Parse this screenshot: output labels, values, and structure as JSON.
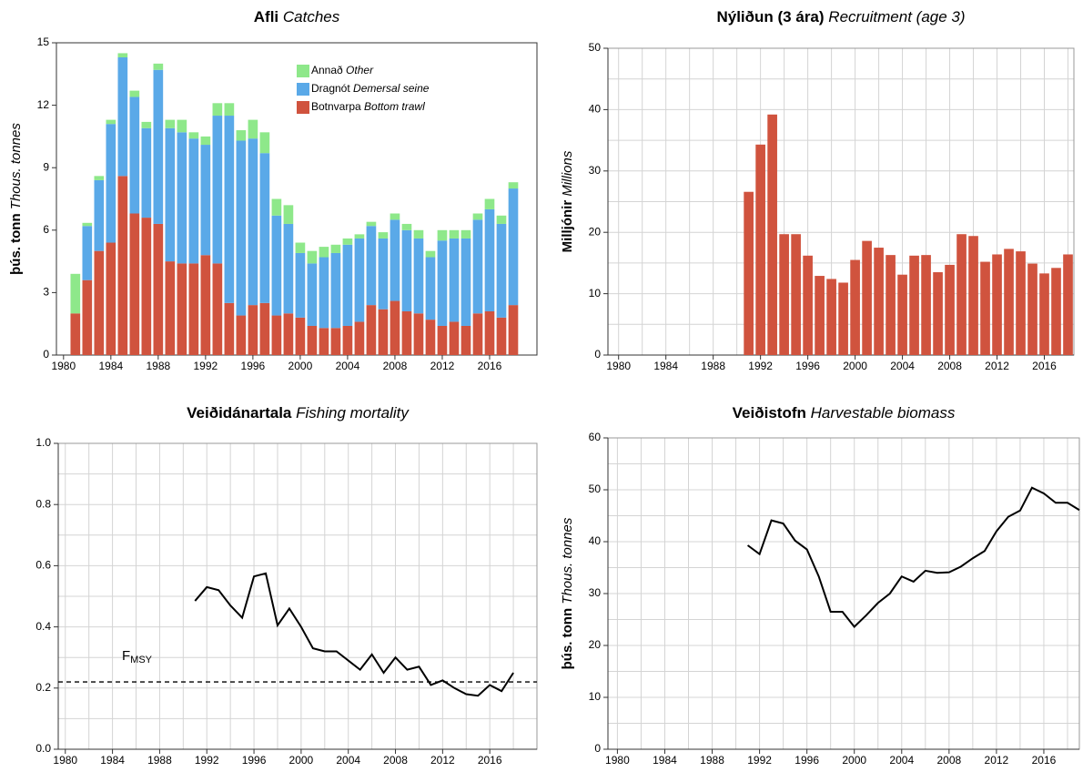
{
  "chart_data": [
    {
      "type": "bar",
      "stacked": true,
      "title": "Afli",
      "title_en": "Catches",
      "ylabel": "þús. tonn",
      "ylabel_en": "Thous. tonnes",
      "x": [
        1981,
        1982,
        1983,
        1984,
        1985,
        1986,
        1987,
        1988,
        1989,
        1990,
        1991,
        1992,
        1993,
        1994,
        1995,
        1996,
        1997,
        1998,
        1999,
        2000,
        2001,
        2002,
        2003,
        2004,
        2005,
        2006,
        2007,
        2008,
        2009,
        2010,
        2011,
        2012,
        2013,
        2014,
        2015,
        2016,
        2017,
        2018
      ],
      "series": [
        {
          "name": "Botnvarpa",
          "name_en": "Bottom trawl",
          "color": "#d0533e",
          "values": [
            2.0,
            3.6,
            5.0,
            5.4,
            8.6,
            6.8,
            6.6,
            6.3,
            4.5,
            4.4,
            4.4,
            4.8,
            4.4,
            2.5,
            1.9,
            2.4,
            2.5,
            1.9,
            2.0,
            1.8,
            1.4,
            1.3,
            1.3,
            1.4,
            1.6,
            2.4,
            2.2,
            2.6,
            2.1,
            2.0,
            1.7,
            1.4,
            1.6,
            1.4,
            2.0,
            2.1,
            1.8,
            2.4
          ]
        },
        {
          "name": "Dragnót",
          "name_en": "Demersal seine",
          "color": "#5aa9e8",
          "values": [
            0,
            2.6,
            3.4,
            5.7,
            5.7,
            5.6,
            4.3,
            7.4,
            6.4,
            6.3,
            6.0,
            5.3,
            7.1,
            9.0,
            8.4,
            8.0,
            7.2,
            4.8,
            4.3,
            3.1,
            3.0,
            3.4,
            3.6,
            3.9,
            4.0,
            3.8,
            3.4,
            3.9,
            3.9,
            3.6,
            3.0,
            4.1,
            4.0,
            4.2,
            4.5,
            4.9,
            4.5,
            5.6
          ]
        },
        {
          "name": "Annað",
          "name_en": "Other",
          "color": "#8ee88a",
          "values": [
            1.9,
            0.15,
            0.2,
            0.2,
            0.2,
            0.3,
            0.3,
            0.3,
            0.4,
            0.6,
            0.3,
            0.4,
            0.6,
            0.6,
            0.5,
            0.9,
            1.0,
            0.8,
            0.9,
            0.5,
            0.6,
            0.5,
            0.4,
            0.3,
            0.2,
            0.2,
            0.3,
            0.3,
            0.3,
            0.4,
            0.3,
            0.5,
            0.4,
            0.4,
            0.3,
            0.5,
            0.4,
            0.3
          ]
        }
      ],
      "xlim": [
        1979.4,
        2020
      ],
      "xticks": [
        1980,
        1984,
        1988,
        1992,
        1996,
        2000,
        2004,
        2008,
        2012,
        2016
      ],
      "ylim": [
        0,
        15
      ],
      "yticks": [
        0,
        3,
        6,
        9,
        12,
        15
      ],
      "grid": false,
      "legend": "top-center"
    },
    {
      "type": "bar",
      "title": "Nýliðun (3 ára)",
      "title_en": "Recruitment (age 3)",
      "ylabel": "Milljónir",
      "ylabel_en": "Millions",
      "x": [
        1991,
        1992,
        1993,
        1994,
        1995,
        1996,
        1997,
        1998,
        1999,
        2000,
        2001,
        2002,
        2003,
        2004,
        2005,
        2006,
        2007,
        2008,
        2009,
        2010,
        2011,
        2012,
        2013,
        2014,
        2015,
        2016,
        2017,
        2018
      ],
      "values": [
        26.6,
        34.3,
        39.2,
        19.7,
        19.7,
        16.2,
        12.9,
        12.4,
        11.8,
        15.5,
        18.6,
        17.5,
        16.3,
        13.1,
        16.2,
        16.3,
        13.5,
        14.7,
        19.7,
        19.4,
        15.2,
        16.4,
        17.3,
        16.9,
        14.9,
        13.3,
        14.2,
        16.4
      ],
      "color": "#d0533e",
      "xlim": [
        1979.1,
        2018.5
      ],
      "xticks": [
        1980,
        1984,
        1988,
        1992,
        1996,
        2000,
        2004,
        2008,
        2012,
        2016
      ],
      "ylim": [
        0,
        50
      ],
      "yticks": [
        0,
        10,
        20,
        30,
        40,
        50
      ],
      "grid": true
    },
    {
      "type": "line",
      "title": "Veiðidánartala",
      "title_en": "Fishing mortality",
      "x": [
        1991,
        1992,
        1993,
        1994,
        1995,
        1996,
        1997,
        1998,
        1999,
        2000,
        2001,
        2002,
        2003,
        2004,
        2005,
        2006,
        2007,
        2008,
        2009,
        2010,
        2011,
        2012,
        2013,
        2014,
        2015,
        2016,
        2017,
        2018
      ],
      "values": [
        0.485,
        0.53,
        0.52,
        0.47,
        0.43,
        0.565,
        0.575,
        0.405,
        0.46,
        0.4,
        0.33,
        0.32,
        0.32,
        0.29,
        0.26,
        0.31,
        0.25,
        0.3,
        0.26,
        0.27,
        0.21,
        0.225,
        0.2,
        0.18,
        0.175,
        0.21,
        0.19,
        0.25
      ],
      "color": "#000000",
      "reference_line": {
        "value": 0.22,
        "label": "F",
        "label_sub": "MSY"
      },
      "xlim": [
        1979.4,
        2020
      ],
      "xticks": [
        1980,
        1984,
        1988,
        1992,
        1996,
        2000,
        2004,
        2008,
        2012,
        2016
      ],
      "ylim": [
        0,
        1
      ],
      "yticks": [
        {
          "value": 0,
          "label": "0.0"
        },
        {
          "value": 0.2,
          "label": "0.2"
        },
        {
          "value": 0.4,
          "label": "0.4"
        },
        {
          "value": 0.6,
          "label": "0.6"
        },
        {
          "value": 0.8,
          "label": "0.8"
        },
        {
          "value": 1,
          "label": "1.0"
        }
      ],
      "grid": true
    },
    {
      "type": "line",
      "title": "Veiðistofn",
      "title_en": "Harvestable biomass",
      "ylabel": "þús. tonn",
      "ylabel_en": "Thous. tonnes",
      "x": [
        1991,
        1992,
        1993,
        1994,
        1995,
        1996,
        1997,
        1998,
        1999,
        2000,
        2001,
        2002,
        2003,
        2004,
        2005,
        2006,
        2007,
        2008,
        2009,
        2010,
        2011,
        2012,
        2013,
        2014,
        2015,
        2016,
        2017,
        2018,
        2019
      ],
      "values": [
        39.3,
        37.6,
        44.1,
        43.5,
        40.2,
        38.5,
        33.3,
        26.5,
        26.5,
        23.6,
        25.8,
        28.2,
        30.0,
        33.3,
        32.3,
        34.4,
        34.0,
        34.1,
        35.2,
        36.8,
        38.2,
        42.0,
        44.8,
        46.0,
        50.4,
        49.3,
        47.5,
        47.5,
        46.1
      ],
      "color": "#000000",
      "xlim": [
        1979.2,
        2019
      ],
      "xticks": [
        1980,
        1984,
        1988,
        1992,
        1996,
        2000,
        2004,
        2008,
        2012,
        2016
      ],
      "ylim": [
        0,
        60
      ],
      "yticks": [
        0,
        10,
        20,
        30,
        40,
        50,
        60
      ],
      "grid": true
    }
  ]
}
